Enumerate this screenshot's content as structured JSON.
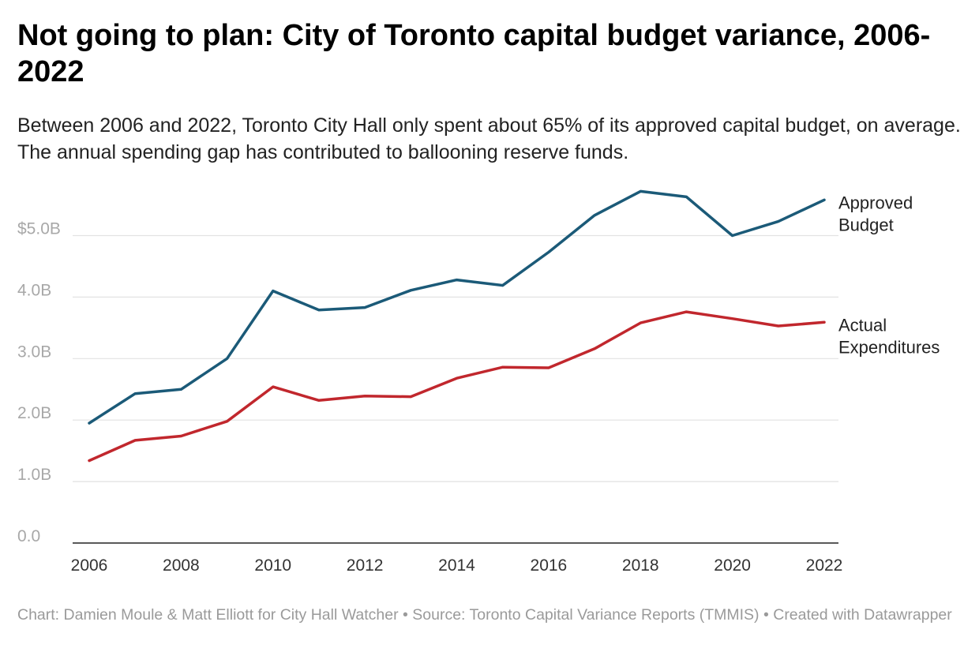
{
  "header": {
    "title": "Not going to plan: City of Toronto capital budget variance, 2006-2022",
    "subtitle": "Between 2006 and 2022, Toronto City Hall only spent about 65% of its approved capital budget, on average. The annual spending gap has contributed to ballooning reserve funds."
  },
  "footer": {
    "credit": "Chart: Damien Moule & Matt Elliott for City Hall Watcher",
    "separator": " • ",
    "source": "Source: Toronto Capital Variance Reports (TMMIS)",
    "tool": "Created with Datawrapper"
  },
  "chart_data": {
    "type": "line",
    "x": [
      2006,
      2007,
      2008,
      2009,
      2010,
      2011,
      2012,
      2013,
      2014,
      2015,
      2016,
      2017,
      2018,
      2019,
      2020,
      2021,
      2022
    ],
    "series": [
      {
        "name": "Approved Budget",
        "label_lines": [
          "Approved",
          "Budget"
        ],
        "color": "#1b5a78",
        "values": [
          1.95,
          2.43,
          2.5,
          3.0,
          4.1,
          3.79,
          3.83,
          4.11,
          4.28,
          4.19,
          4.73,
          5.33,
          5.72,
          5.63,
          5.0,
          5.23,
          5.58
        ]
      },
      {
        "name": "Actual Expenditures",
        "label_lines": [
          "Actual",
          "Expenditures"
        ],
        "color": "#c1272d",
        "values": [
          1.34,
          1.67,
          1.74,
          1.98,
          2.54,
          2.32,
          2.39,
          2.38,
          2.68,
          2.86,
          2.85,
          3.16,
          3.58,
          3.76,
          3.65,
          3.53,
          3.59
        ]
      }
    ],
    "ylim": [
      0,
      5.8
    ],
    "y_ticks": [
      {
        "value": 0,
        "label": "0.0"
      },
      {
        "value": 1,
        "label": "1.0B"
      },
      {
        "value": 2,
        "label": "2.0B"
      },
      {
        "value": 3,
        "label": "3.0B"
      },
      {
        "value": 4,
        "label": "4.0B"
      },
      {
        "value": 5,
        "label": "$5.0B"
      }
    ],
    "x_ticks": [
      2006,
      2008,
      2010,
      2012,
      2014,
      2016,
      2018,
      2020,
      2022
    ],
    "grid": true,
    "legend": "inline labels at right end of lines"
  }
}
